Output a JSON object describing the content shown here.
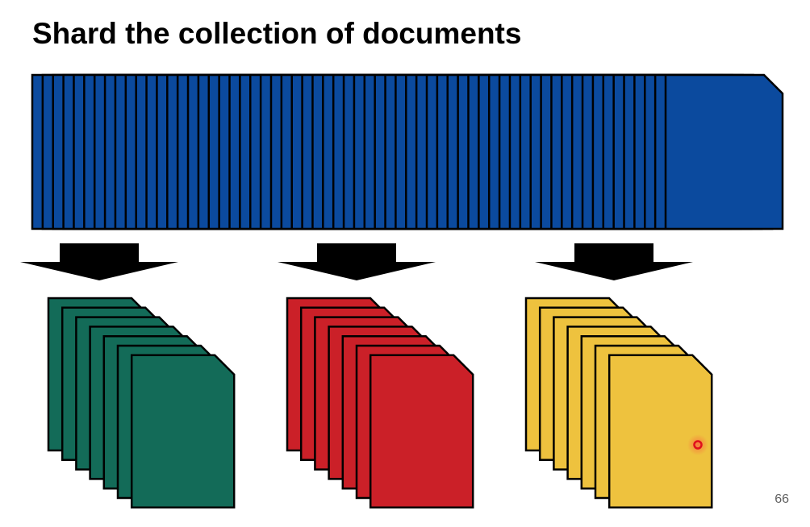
{
  "slide": {
    "title": "Shard the collection of documents",
    "page_number": "66"
  },
  "collection": {
    "color": "#0B4A9E",
    "stacked_pages": 62
  },
  "shards": [
    {
      "name": "green",
      "color": "#136B58",
      "pages": 7
    },
    {
      "name": "red",
      "color": "#CB2028",
      "pages": 7
    },
    {
      "name": "yellow",
      "color": "#EEC23E",
      "pages": 7
    }
  ],
  "cursor": {
    "color": "#E0101C"
  }
}
